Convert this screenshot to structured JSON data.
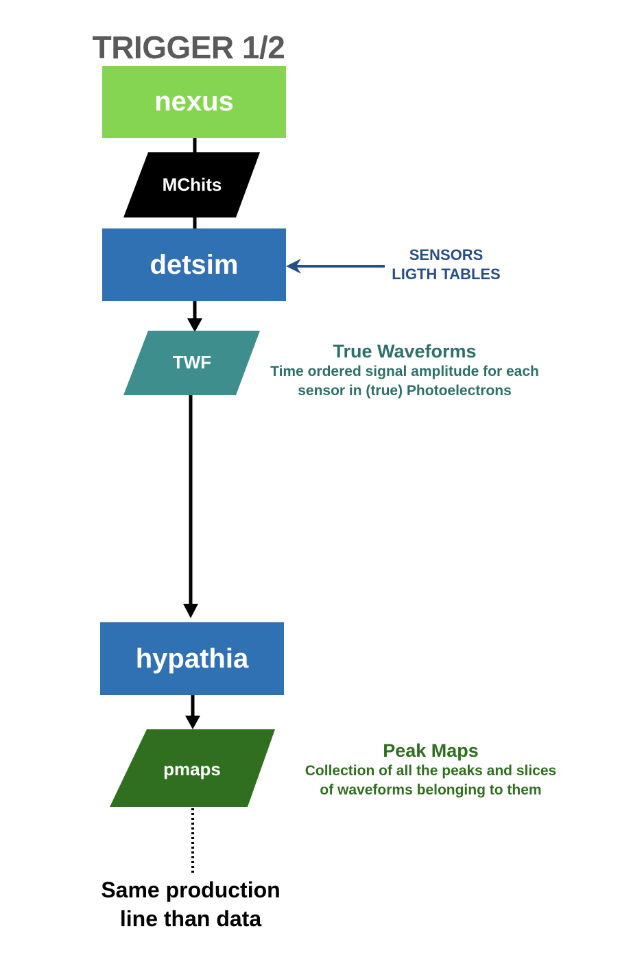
{
  "title": "TRIGGER 1/2",
  "nodes": {
    "nexus": "nexus",
    "mchits": "MChits",
    "detsim": "detsim",
    "twf": "TWF",
    "hypathia": "hypathia",
    "pmaps": "pmaps"
  },
  "sensors": {
    "line1": "SENSORS",
    "line2": "LIGTH TABLES"
  },
  "twf_note": {
    "title": "True Waveforms",
    "line1": "Time ordered signal amplitude for each",
    "line2": "sensor in (true) Photoelectrons"
  },
  "pmaps_note": {
    "title": "Peak Maps",
    "line1": "Collection of all the peaks and slices",
    "line2": "of waveforms belonging to them"
  },
  "footer": {
    "line1": "Same production",
    "line2": "line than data"
  },
  "colors": {
    "nexus": "#86d552",
    "mchits": "#000000",
    "detsim": "#3071b3",
    "twf": "#3d8e8c",
    "hypathia": "#3071b3",
    "pmaps": "#2f6f1f",
    "sensors_text": "#264f86",
    "twf_text": "#2e6f6c",
    "pmaps_text": "#2f6f1f",
    "title_text": "#5a5a5a"
  }
}
